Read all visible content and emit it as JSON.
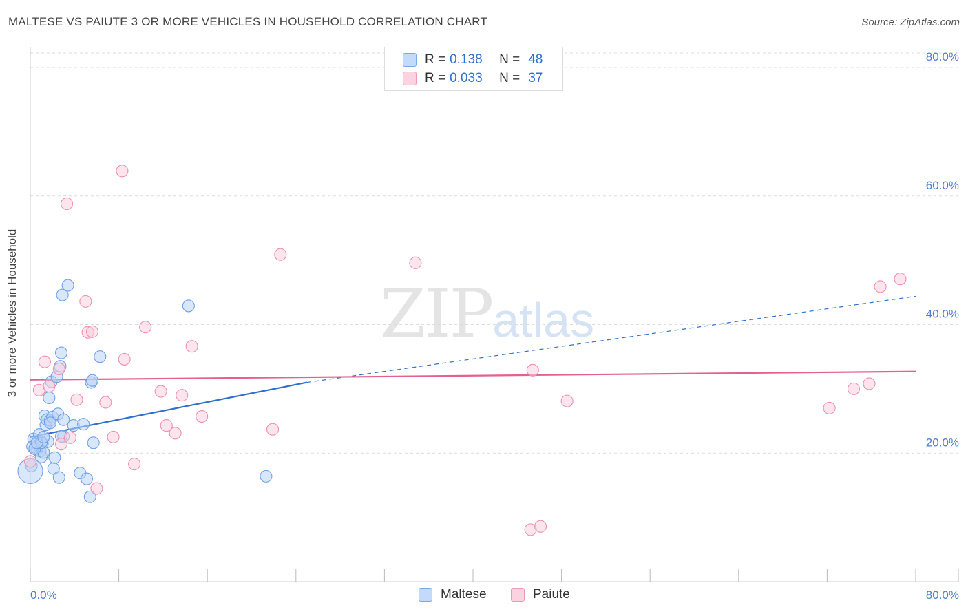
{
  "title": "MALTESE VS PAIUTE 3 OR MORE VEHICLES IN HOUSEHOLD CORRELATION CHART",
  "source": "Source: ZipAtlas.com",
  "watermark": {
    "zip": "ZIP",
    "atlas": "atlas"
  },
  "legend": {
    "rows": [
      {
        "r_label": "R =",
        "r_value": "0.138",
        "n_label": "N =",
        "n_value": "48",
        "color": "#a9c8f4"
      },
      {
        "r_label": "R =",
        "r_value": "0.033",
        "n_label": "N =",
        "n_value": "37",
        "color": "#f8bfd1"
      }
    ]
  },
  "bottom_legend": [
    {
      "label": "Maltese",
      "color": "#a9c8f4"
    },
    {
      "label": "Paiute",
      "color": "#f8bfd1"
    }
  ],
  "chart_data": {
    "type": "scatter",
    "title": "MALTESE VS PAIUTE 3 OR MORE VEHICLES IN HOUSEHOLD CORRELATION CHART",
    "xlabel": "",
    "ylabel": "3 or more Vehicles in Household",
    "xlim": [
      0,
      80
    ],
    "ylim": [
      0,
      80
    ],
    "x_tick_labels": [
      "0.0%",
      "80.0%"
    ],
    "y_ticks": [
      20,
      40,
      60,
      80
    ],
    "y_tick_labels": [
      "20.0%",
      "40.0%",
      "60.0%",
      "80.0%"
    ],
    "grid": true,
    "series": [
      {
        "name": "Maltese",
        "color": "#6fa0e6",
        "fill": "#b9d3f6",
        "trend": {
          "x": [
            0,
            25
          ],
          "y": [
            22.5,
            31.0
          ],
          "dashed_to_x": 80,
          "dashed_to_y": 44.4,
          "color": "#2f6fd0"
        },
        "points": [
          [
            0.1,
            18.0
          ],
          [
            0.3,
            22.2
          ],
          [
            0.5,
            21.4
          ],
          [
            0.6,
            20.5
          ],
          [
            0.7,
            21.2
          ],
          [
            0.8,
            22.9
          ],
          [
            0.9,
            20.3
          ],
          [
            1.0,
            19.4
          ],
          [
            1.1,
            21.5
          ],
          [
            1.2,
            20.1
          ],
          [
            1.3,
            25.8
          ],
          [
            1.4,
            24.4
          ],
          [
            1.5,
            25.2
          ],
          [
            1.6,
            21.8
          ],
          [
            1.7,
            28.6
          ],
          [
            1.8,
            25.1
          ],
          [
            1.9,
            31.1
          ],
          [
            2.0,
            25.6
          ],
          [
            2.1,
            17.6
          ],
          [
            2.2,
            19.3
          ],
          [
            2.4,
            31.9
          ],
          [
            2.5,
            26.1
          ],
          [
            2.6,
            16.2
          ],
          [
            2.7,
            33.5
          ],
          [
            2.8,
            35.6
          ],
          [
            2.9,
            44.6
          ],
          [
            3.0,
            22.6
          ],
          [
            2.8,
            22.6
          ],
          [
            3.0,
            25.2
          ],
          [
            3.4,
            46.1
          ],
          [
            3.9,
            24.3
          ],
          [
            4.5,
            16.9
          ],
          [
            4.8,
            24.5
          ],
          [
            5.1,
            16.0
          ],
          [
            5.4,
            13.2
          ],
          [
            5.5,
            31.0
          ],
          [
            5.6,
            31.3
          ],
          [
            5.7,
            21.6
          ],
          [
            6.3,
            35.0
          ],
          [
            14.3,
            42.9
          ],
          [
            21.3,
            16.4
          ],
          [
            0.2,
            21.0
          ],
          [
            0.4,
            20.7
          ],
          [
            1.0,
            21.6
          ],
          [
            1.8,
            24.7
          ],
          [
            0.6,
            21.6
          ],
          [
            1.2,
            22.5
          ],
          [
            0.0,
            17.2
          ]
        ]
      },
      {
        "name": "Paiute",
        "color": "#ee8fb0",
        "fill": "#f9cfdd",
        "trend": {
          "x": [
            0,
            80
          ],
          "y": [
            31.4,
            32.7
          ],
          "color": "#e5608e"
        },
        "points": [
          [
            0.0,
            18.7
          ],
          [
            0.8,
            29.8
          ],
          [
            1.3,
            34.2
          ],
          [
            1.7,
            30.4
          ],
          [
            2.6,
            33.1
          ],
          [
            2.8,
            21.4
          ],
          [
            3.3,
            58.8
          ],
          [
            3.6,
            22.4
          ],
          [
            4.2,
            28.3
          ],
          [
            5.0,
            43.6
          ],
          [
            5.2,
            38.8
          ],
          [
            5.6,
            38.9
          ],
          [
            6.0,
            14.5
          ],
          [
            6.8,
            27.9
          ],
          [
            7.5,
            22.5
          ],
          [
            8.3,
            63.9
          ],
          [
            8.5,
            34.6
          ],
          [
            9.4,
            18.3
          ],
          [
            10.4,
            39.6
          ],
          [
            11.8,
            29.6
          ],
          [
            12.3,
            24.3
          ],
          [
            13.1,
            23.1
          ],
          [
            13.7,
            29.0
          ],
          [
            14.6,
            36.6
          ],
          [
            15.5,
            25.7
          ],
          [
            21.9,
            23.7
          ],
          [
            22.6,
            50.9
          ],
          [
            34.8,
            49.6
          ],
          [
            45.4,
            32.9
          ],
          [
            45.2,
            8.1
          ],
          [
            46.1,
            8.6
          ],
          [
            48.5,
            28.1
          ],
          [
            72.2,
            27.0
          ],
          [
            74.4,
            30.0
          ],
          [
            75.8,
            30.8
          ],
          [
            76.8,
            45.9
          ],
          [
            78.6,
            47.1
          ]
        ]
      }
    ]
  }
}
